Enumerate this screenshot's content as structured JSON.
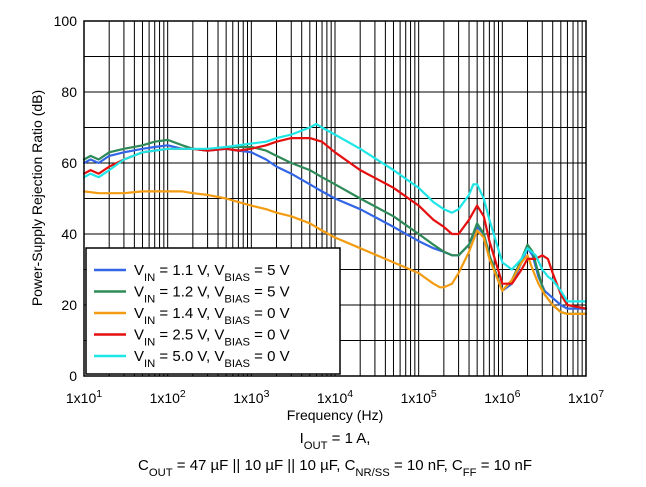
{
  "chart_data": {
    "type": "line",
    "xscale": "log",
    "xlim": [
      10,
      10000000
    ],
    "ylim": [
      0,
      100
    ],
    "grid": true,
    "xlabel": "Frequency (Hz)",
    "ylabel": "Power-Supply Rejection Ratio (dB)",
    "x_ticks": [
      {
        "value": 10,
        "base": "1x10",
        "exp": "1"
      },
      {
        "value": 100,
        "base": "1x10",
        "exp": "2"
      },
      {
        "value": 1000,
        "base": "1x10",
        "exp": "3"
      },
      {
        "value": 10000,
        "base": "1x10",
        "exp": "4"
      },
      {
        "value": 100000,
        "base": "1x10",
        "exp": "5"
      },
      {
        "value": 1000000,
        "base": "1x10",
        "exp": "6"
      },
      {
        "value": 10000000,
        "base": "1x10",
        "exp": "7"
      }
    ],
    "y_ticks": [
      "0",
      "20",
      "40",
      "60",
      "80",
      "100"
    ],
    "legend_position": "bottom-left",
    "conditions_line1": [
      {
        "t": "I",
        "s": null
      },
      {
        "t": "OUT",
        "s": "sub"
      },
      {
        "t": " = 1 A,",
        "s": null
      }
    ],
    "conditions_line2": [
      {
        "t": "C",
        "s": null
      },
      {
        "t": "OUT",
        "s": "sub"
      },
      {
        "t": " = 47 µF || 10 µF || 10 µF, C",
        "s": null
      },
      {
        "t": "NR/SS",
        "s": "sub"
      },
      {
        "t": " = 10 nF, C",
        "s": null
      },
      {
        "t": "FF",
        "s": "sub"
      },
      {
        "t": " = 10 nF",
        "s": null
      }
    ],
    "series": [
      {
        "name": "VIN = 1.1 V, VBIAS = 5 V",
        "label_parts": [
          {
            "t": "V",
            "s": null
          },
          {
            "t": "IN",
            "s": "sub"
          },
          {
            "t": " = 1.1 V, V",
            "s": null
          },
          {
            "t": "BIAS",
            "s": "sub"
          },
          {
            "t": " = 5 V",
            "s": null
          }
        ],
        "color": "#3366e6",
        "points": [
          [
            10,
            60
          ],
          [
            12,
            61
          ],
          [
            15,
            60
          ],
          [
            20,
            62
          ],
          [
            30,
            63
          ],
          [
            50,
            64
          ],
          [
            70,
            64.5
          ],
          [
            100,
            65
          ],
          [
            150,
            64
          ],
          [
            200,
            64
          ],
          [
            300,
            63.5
          ],
          [
            500,
            64
          ],
          [
            700,
            63.5
          ],
          [
            1000,
            63
          ],
          [
            1500,
            61
          ],
          [
            2000,
            59
          ],
          [
            3000,
            57
          ],
          [
            5000,
            54
          ],
          [
            7000,
            52
          ],
          [
            10000,
            50
          ],
          [
            20000,
            47
          ],
          [
            50000,
            42
          ],
          [
            100000,
            38
          ],
          [
            150000,
            36
          ],
          [
            200000,
            35
          ],
          [
            250000,
            34
          ],
          [
            300000,
            34
          ],
          [
            400000,
            37
          ],
          [
            500000,
            42
          ],
          [
            600000,
            40
          ],
          [
            700000,
            34
          ],
          [
            1000000,
            24
          ],
          [
            1300000,
            26
          ],
          [
            1700000,
            32
          ],
          [
            2000000,
            36
          ],
          [
            2300000,
            34
          ],
          [
            2700000,
            28
          ],
          [
            3200000,
            24
          ],
          [
            4000000,
            22
          ],
          [
            5000000,
            20
          ],
          [
            6000000,
            19
          ],
          [
            10000000,
            19
          ]
        ]
      },
      {
        "name": "VIN = 1.2 V, VBIAS = 5 V",
        "label_parts": [
          {
            "t": "V",
            "s": null
          },
          {
            "t": "IN",
            "s": "sub"
          },
          {
            "t": " = 1.2 V, V",
            "s": null
          },
          {
            "t": "BIAS",
            "s": "sub"
          },
          {
            "t": " = 5 V",
            "s": null
          }
        ],
        "color": "#2e8b57",
        "points": [
          [
            10,
            61
          ],
          [
            12,
            62
          ],
          [
            15,
            61
          ],
          [
            20,
            63
          ],
          [
            30,
            64
          ],
          [
            50,
            65
          ],
          [
            70,
            66
          ],
          [
            100,
            66.5
          ],
          [
            150,
            65
          ],
          [
            200,
            64
          ],
          [
            300,
            63.5
          ],
          [
            500,
            64.5
          ],
          [
            700,
            64.5
          ],
          [
            1000,
            64.5
          ],
          [
            1500,
            63.5
          ],
          [
            2000,
            62
          ],
          [
            3000,
            60
          ],
          [
            5000,
            58
          ],
          [
            7000,
            56
          ],
          [
            10000,
            54
          ],
          [
            20000,
            50
          ],
          [
            50000,
            45
          ],
          [
            100000,
            40
          ],
          [
            150000,
            37
          ],
          [
            200000,
            35
          ],
          [
            250000,
            34
          ],
          [
            300000,
            34
          ],
          [
            400000,
            37
          ],
          [
            500000,
            43
          ],
          [
            600000,
            40
          ],
          [
            700000,
            34
          ],
          [
            1000000,
            24
          ],
          [
            1300000,
            27
          ],
          [
            1700000,
            33
          ],
          [
            2000000,
            37
          ],
          [
            2300000,
            35
          ],
          [
            2700000,
            29
          ],
          [
            3200000,
            23
          ],
          [
            4000000,
            20
          ],
          [
            5000000,
            18
          ],
          [
            6000000,
            17.5
          ],
          [
            10000000,
            17.5
          ]
        ]
      },
      {
        "name": "VIN = 1.4 V, VBIAS = 0 V",
        "label_parts": [
          {
            "t": "V",
            "s": null
          },
          {
            "t": "IN",
            "s": "sub"
          },
          {
            "t": " = 1.4 V, V",
            "s": null
          },
          {
            "t": "BIAS",
            "s": "sub"
          },
          {
            "t": " = 0 V",
            "s": null
          }
        ],
        "color": "#f39c12",
        "points": [
          [
            10,
            52
          ],
          [
            15,
            51.5
          ],
          [
            20,
            51.5
          ],
          [
            30,
            51.5
          ],
          [
            50,
            52
          ],
          [
            70,
            52
          ],
          [
            100,
            52
          ],
          [
            150,
            52
          ],
          [
            200,
            51.5
          ],
          [
            300,
            51
          ],
          [
            500,
            50
          ],
          [
            700,
            49
          ],
          [
            1000,
            48
          ],
          [
            1500,
            47
          ],
          [
            2000,
            46
          ],
          [
            3000,
            45
          ],
          [
            5000,
            43
          ],
          [
            7000,
            41
          ],
          [
            10000,
            39
          ],
          [
            20000,
            36
          ],
          [
            50000,
            32
          ],
          [
            100000,
            29
          ],
          [
            150000,
            26
          ],
          [
            180000,
            25
          ],
          [
            200000,
            25
          ],
          [
            250000,
            26
          ],
          [
            300000,
            29
          ],
          [
            400000,
            35
          ],
          [
            500000,
            41
          ],
          [
            600000,
            39
          ],
          [
            700000,
            33
          ],
          [
            1000000,
            24
          ],
          [
            1300000,
            27
          ],
          [
            1700000,
            32
          ],
          [
            2000000,
            34
          ],
          [
            2300000,
            30
          ],
          [
            2700000,
            26
          ],
          [
            3200000,
            23
          ],
          [
            4000000,
            20
          ],
          [
            5000000,
            18
          ],
          [
            6000000,
            17.5
          ],
          [
            10000000,
            17.5
          ]
        ]
      },
      {
        "name": "VIN = 2.5 V, VBIAS = 0 V",
        "label_parts": [
          {
            "t": "V",
            "s": null
          },
          {
            "t": "IN",
            "s": "sub"
          },
          {
            "t": " = 2.5 V, V",
            "s": null
          },
          {
            "t": "BIAS",
            "s": "sub"
          },
          {
            "t": " = 0 V",
            "s": null
          }
        ],
        "color": "#e60f0f",
        "points": [
          [
            10,
            57
          ],
          [
            12,
            58
          ],
          [
            15,
            57
          ],
          [
            20,
            59
          ],
          [
            30,
            61
          ],
          [
            50,
            63
          ],
          [
            70,
            63.5
          ],
          [
            100,
            64
          ],
          [
            150,
            64
          ],
          [
            200,
            64
          ],
          [
            300,
            63.5
          ],
          [
            500,
            64
          ],
          [
            700,
            63.5
          ],
          [
            1000,
            64
          ],
          [
            1500,
            65
          ],
          [
            2000,
            66
          ],
          [
            3000,
            67
          ],
          [
            4000,
            67
          ],
          [
            5000,
            67
          ],
          [
            7000,
            66
          ],
          [
            10000,
            63
          ],
          [
            20000,
            58
          ],
          [
            50000,
            53
          ],
          [
            100000,
            48
          ],
          [
            150000,
            44
          ],
          [
            200000,
            42
          ],
          [
            250000,
            40
          ],
          [
            300000,
            40
          ],
          [
            400000,
            44
          ],
          [
            500000,
            48
          ],
          [
            600000,
            45
          ],
          [
            700000,
            38
          ],
          [
            1000000,
            26
          ],
          [
            1300000,
            26
          ],
          [
            1700000,
            30
          ],
          [
            2000000,
            33
          ],
          [
            2500000,
            33
          ],
          [
            3000000,
            34
          ],
          [
            3500000,
            33
          ],
          [
            4000000,
            29
          ],
          [
            5000000,
            23
          ],
          [
            6000000,
            20
          ],
          [
            10000000,
            19
          ]
        ]
      },
      {
        "name": "VIN = 5.0 V, VBIAS = 0 V",
        "label_parts": [
          {
            "t": "V",
            "s": null
          },
          {
            "t": "IN",
            "s": "sub"
          },
          {
            "t": " = 5.0 V, V",
            "s": null
          },
          {
            "t": "BIAS",
            "s": "sub"
          },
          {
            "t": " = 0 V",
            "s": null
          }
        ],
        "color": "#1ee6e6",
        "points": [
          [
            10,
            56
          ],
          [
            12,
            57
          ],
          [
            15,
            56
          ],
          [
            20,
            58
          ],
          [
            30,
            61
          ],
          [
            50,
            63
          ],
          [
            70,
            63.5
          ],
          [
            100,
            64
          ],
          [
            150,
            64
          ],
          [
            200,
            64
          ],
          [
            300,
            64
          ],
          [
            500,
            64.5
          ],
          [
            700,
            65
          ],
          [
            1000,
            65.5
          ],
          [
            1500,
            66
          ],
          [
            2000,
            67
          ],
          [
            3000,
            68
          ],
          [
            5000,
            70
          ],
          [
            6000,
            71
          ],
          [
            7000,
            70
          ],
          [
            10000,
            68
          ],
          [
            20000,
            64
          ],
          [
            50000,
            58
          ],
          [
            100000,
            53
          ],
          [
            150000,
            49
          ],
          [
            200000,
            47
          ],
          [
            250000,
            46
          ],
          [
            300000,
            47
          ],
          [
            400000,
            51
          ],
          [
            450000,
            54
          ],
          [
            500000,
            54
          ],
          [
            600000,
            50
          ],
          [
            700000,
            44
          ],
          [
            1000000,
            32
          ],
          [
            1300000,
            30
          ],
          [
            1700000,
            33
          ],
          [
            2000000,
            36
          ],
          [
            2500000,
            34
          ],
          [
            3000000,
            30
          ],
          [
            3500000,
            28
          ],
          [
            4000000,
            27
          ],
          [
            5000000,
            24
          ],
          [
            6000000,
            21
          ],
          [
            10000000,
            21
          ]
        ]
      }
    ]
  }
}
